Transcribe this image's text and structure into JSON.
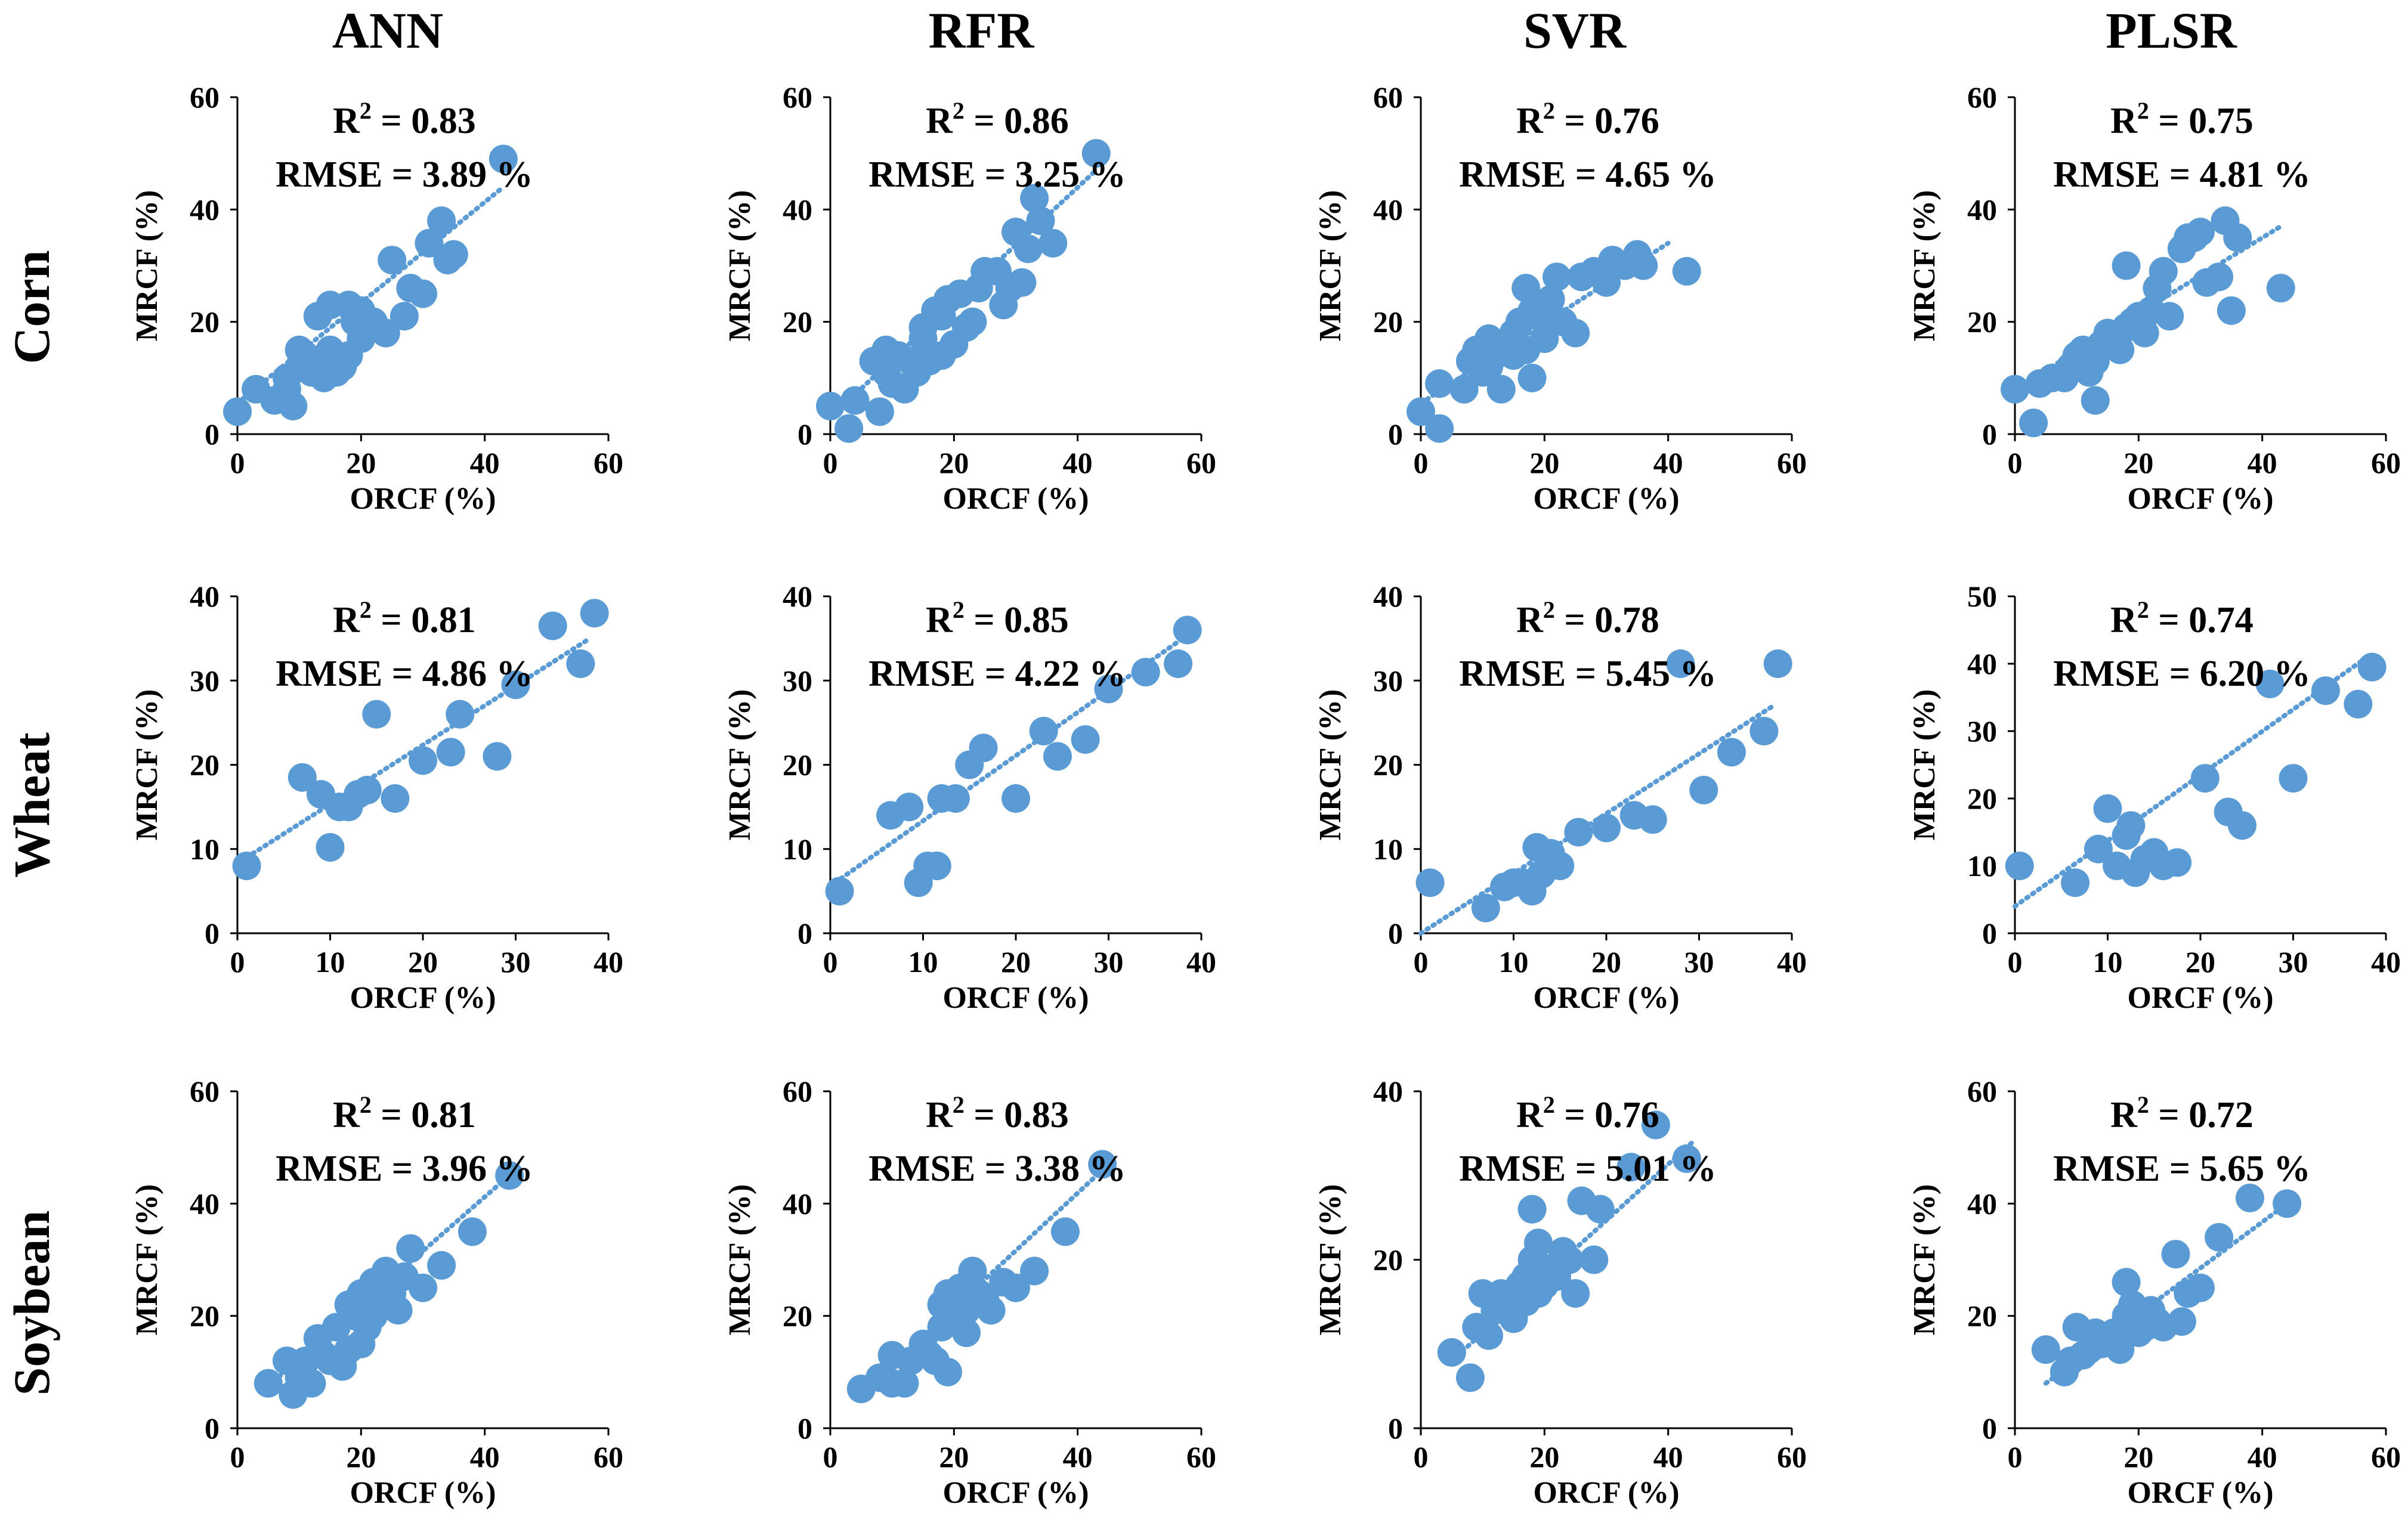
{
  "figure": {
    "column_titles": [
      "ANN",
      "RFR",
      "SVR",
      "PLSR"
    ],
    "row_titles": [
      "Corn",
      "Wheat",
      "Soybean"
    ],
    "x_label": "ORCF (%)",
    "y_label": "MRCF (%)",
    "marker_color": "#5B9BD5",
    "trend_color": "#5B9BD5"
  },
  "chart_data": [
    {
      "type": "scatter",
      "crop": "Corn",
      "model": "ANN",
      "title": "Corn – ANN",
      "xlabel": "ORCF (%)",
      "ylabel": "MRCF (%)",
      "xlim": [
        0,
        60
      ],
      "ylim": [
        0,
        60
      ],
      "xticks": [
        0,
        20,
        40,
        60
      ],
      "yticks": [
        0,
        20,
        40,
        60
      ],
      "r2_text": "R",
      "r2_value": " = 0.83",
      "rmse_text": "RMSE = 3.89 %",
      "trend": [
        [
          0,
          5.5
        ],
        [
          43,
          44
        ]
      ],
      "x": [
        0,
        3,
        6,
        8,
        8,
        9,
        10,
        10,
        11,
        12,
        13,
        13,
        14,
        15,
        15,
        16,
        17,
        18,
        18,
        19,
        20,
        20,
        21,
        22,
        24,
        25,
        27,
        28,
        30,
        31,
        33,
        34,
        35,
        43
      ],
      "y": [
        4,
        8,
        6,
        8,
        10,
        5,
        12,
        15,
        14,
        11,
        13,
        21,
        10,
        15,
        23,
        11,
        12,
        14,
        23,
        20,
        17,
        22,
        19,
        20,
        18,
        31,
        21,
        26,
        25,
        34,
        38,
        31,
        32,
        49
      ]
    },
    {
      "type": "scatter",
      "crop": "Corn",
      "model": "RFR",
      "title": "Corn – RFR",
      "xlabel": "ORCF (%)",
      "ylabel": "MRCF (%)",
      "xlim": [
        0,
        60
      ],
      "ylim": [
        0,
        60
      ],
      "xticks": [
        0,
        20,
        40,
        60
      ],
      "yticks": [
        0,
        20,
        40,
        60
      ],
      "r2_text": "R",
      "r2_value": " = 0.86",
      "rmse_text": "RMSE = 3.25 %",
      "trend": [
        [
          0,
          3
        ],
        [
          43,
          47
        ]
      ],
      "x": [
        0,
        3,
        4,
        7,
        8,
        9,
        9,
        10,
        11,
        12,
        13,
        14,
        15,
        15,
        16,
        17,
        18,
        18,
        19,
        20,
        21,
        22,
        23,
        24,
        25,
        27,
        28,
        29,
        30,
        31,
        32,
        33,
        34,
        36,
        43
      ],
      "y": [
        5,
        1,
        6,
        13,
        4,
        11,
        15,
        9,
        14,
        8,
        13,
        11,
        17,
        19,
        13,
        22,
        14,
        21,
        24,
        16,
        25,
        19,
        20,
        26,
        29,
        29,
        23,
        26,
        36,
        27,
        33,
        42,
        38,
        34,
        50
      ]
    },
    {
      "type": "scatter",
      "crop": "Corn",
      "model": "SVR",
      "title": "Corn – SVR",
      "xlabel": "ORCF (%)",
      "ylabel": "MRCF (%)",
      "xlim": [
        0,
        60
      ],
      "ylim": [
        0,
        60
      ],
      "xticks": [
        0,
        20,
        40,
        60
      ],
      "yticks": [
        0,
        20,
        40,
        60
      ],
      "r2_text": "R",
      "r2_value": " = 0.76",
      "rmse_text": "RMSE = 4.65 %",
      "trend": [
        [
          0,
          5.5
        ],
        [
          40,
          34
        ]
      ],
      "x": [
        0,
        3,
        3,
        7,
        8,
        9,
        10,
        11,
        11,
        12,
        13,
        14,
        15,
        15,
        16,
        17,
        17,
        18,
        18,
        19,
        20,
        21,
        22,
        23,
        25,
        26,
        28,
        30,
        31,
        33,
        35,
        36,
        43
      ],
      "y": [
        4,
        1,
        9,
        8,
        13,
        15,
        11,
        17,
        12,
        14,
        8,
        16,
        18,
        14,
        20,
        26,
        15,
        10,
        22,
        21,
        17,
        24,
        28,
        20,
        18,
        28,
        29,
        27,
        31,
        30,
        32,
        30,
        29
      ]
    },
    {
      "type": "scatter",
      "crop": "Corn",
      "model": "PLSR",
      "title": "Corn – PLSR",
      "xlabel": "ORCF (%)",
      "ylabel": "MRCF (%)",
      "xlim": [
        0,
        60
      ],
      "ylim": [
        0,
        60
      ],
      "xticks": [
        0,
        20,
        40,
        60
      ],
      "yticks": [
        0,
        20,
        40,
        60
      ],
      "r2_text": "R",
      "r2_value": " = 0.75",
      "rmse_text": "RMSE = 4.81 %",
      "trend": [
        [
          0,
          8
        ],
        [
          43,
          37
        ]
      ],
      "x": [
        0,
        3,
        4,
        6,
        8,
        9,
        10,
        11,
        12,
        13,
        13,
        14,
        15,
        16,
        17,
        18,
        18,
        19,
        20,
        21,
        22,
        23,
        24,
        25,
        27,
        28,
        29,
        30,
        31,
        33,
        34,
        35,
        36,
        43
      ],
      "y": [
        8,
        2,
        9,
        10,
        10,
        12,
        14,
        15,
        11,
        6,
        13,
        16,
        18,
        17,
        15,
        30,
        19,
        20,
        21,
        18,
        22,
        26,
        29,
        21,
        33,
        35,
        35,
        36,
        27,
        28,
        38,
        22,
        35,
        26
      ]
    },
    {
      "type": "scatter",
      "crop": "Wheat",
      "model": "ANN",
      "title": "Wheat – ANN",
      "xlabel": "ORCF (%)",
      "ylabel": "MRCF (%)",
      "xlim": [
        0,
        40
      ],
      "ylim": [
        0,
        40
      ],
      "xticks": [
        0,
        10,
        20,
        30,
        40
      ],
      "yticks": [
        0,
        10,
        20,
        30,
        40
      ],
      "r2_text": "R",
      "r2_value": " = 0.81",
      "rmse_text": "RMSE = 4.86 %",
      "trend": [
        [
          1,
          9
        ],
        [
          38,
          35
        ]
      ],
      "x": [
        1,
        7,
        9,
        10,
        11,
        12,
        13,
        14,
        15,
        17,
        20,
        23,
        24,
        28,
        30,
        34,
        37,
        38.5
      ],
      "y": [
        8,
        18.5,
        16.5,
        10.2,
        15,
        15,
        16.5,
        17,
        26,
        16,
        20.5,
        21.5,
        26,
        21,
        29.5,
        36.5,
        32,
        38
      ]
    },
    {
      "type": "scatter",
      "crop": "Wheat",
      "model": "RFR",
      "title": "Wheat – RFR",
      "xlabel": "ORCF (%)",
      "ylabel": "MRCF (%)",
      "xlim": [
        0,
        40
      ],
      "ylim": [
        0,
        40
      ],
      "xticks": [
        0,
        10,
        20,
        30,
        40
      ],
      "yticks": [
        0,
        10,
        20,
        30,
        40
      ],
      "r2_text": "R",
      "r2_value": " = 0.85",
      "rmse_text": "RMSE = 4.22 %",
      "trend": [
        [
          0.5,
          6
        ],
        [
          38,
          35
        ]
      ],
      "x": [
        1,
        6.5,
        8.5,
        9.5,
        10.5,
        11.5,
        12,
        13.5,
        15,
        16.5,
        20,
        23,
        24.5,
        27.5,
        30,
        34,
        37.5,
        38.5
      ],
      "y": [
        5,
        14,
        15,
        6,
        8,
        8,
        16,
        16,
        20,
        22,
        16,
        24,
        21,
        23,
        29,
        31,
        32,
        36
      ]
    },
    {
      "type": "scatter",
      "crop": "Wheat",
      "model": "SVR",
      "title": "Wheat – SVR",
      "xlabel": "ORCF (%)",
      "ylabel": "MRCF (%)",
      "xlim": [
        0,
        40
      ],
      "ylim": [
        0,
        40
      ],
      "xticks": [
        0,
        10,
        20,
        30,
        40
      ],
      "yticks": [
        0,
        10,
        20,
        30,
        40
      ],
      "r2_text": "R",
      "r2_value": " = 0.78",
      "rmse_text": "RMSE = 5.45 %",
      "trend": [
        [
          0,
          0
        ],
        [
          38,
          27
        ]
      ],
      "x": [
        1,
        7,
        9,
        10,
        11,
        12,
        12.5,
        13,
        14,
        15,
        17,
        20,
        23,
        25,
        28,
        30.5,
        33.5,
        37,
        38.5
      ],
      "y": [
        6,
        3,
        5.5,
        6,
        6,
        5,
        10.2,
        7,
        9.5,
        8,
        12,
        12.5,
        14,
        13.5,
        32,
        17,
        21.5,
        24,
        32
      ]
    },
    {
      "type": "scatter",
      "crop": "Wheat",
      "model": "PLSR",
      "title": "Wheat – PLSR",
      "xlabel": "ORCF (%)",
      "ylabel": "MRCF (%)",
      "xlim": [
        0,
        40
      ],
      "ylim": [
        0,
        50
      ],
      "xticks": [
        0,
        10,
        20,
        30,
        40
      ],
      "yticks": [
        0,
        10,
        20,
        30,
        40,
        50
      ],
      "r2_text": "R",
      "r2_value": " = 0.74",
      "rmse_text": "RMSE = 6.20 %",
      "trend": [
        [
          0,
          4
        ],
        [
          38,
          41
        ]
      ],
      "x": [
        0.5,
        6.5,
        9,
        10,
        11,
        12,
        12.5,
        13,
        14,
        15,
        16,
        17.5,
        20.5,
        23,
        24.5,
        27.5,
        30,
        33.5,
        37,
        38.5
      ],
      "y": [
        10,
        7.5,
        12.5,
        18.5,
        10,
        14.5,
        16,
        9,
        11,
        12,
        10,
        10.5,
        23,
        18,
        16,
        37,
        23,
        36,
        34,
        39.5
      ]
    },
    {
      "type": "scatter",
      "crop": "Soybean",
      "model": "ANN",
      "title": "Soybean – ANN",
      "xlabel": "ORCF (%)",
      "ylabel": "MRCF (%)",
      "xlim": [
        0,
        60
      ],
      "ylim": [
        0,
        60
      ],
      "xticks": [
        0,
        20,
        40,
        60
      ],
      "yticks": [
        0,
        20,
        40,
        60
      ],
      "r2_text": "R",
      "r2_value": " = 0.81",
      "rmse_text": "RMSE = 3.96 %",
      "trend": [
        [
          5,
          7.5
        ],
        [
          45,
          46
        ]
      ],
      "x": [
        5,
        8,
        9,
        10,
        11,
        12,
        13,
        14,
        15,
        16,
        17,
        18,
        18,
        19,
        20,
        20,
        21,
        22,
        22,
        23,
        24,
        25,
        26,
        27,
        28,
        30,
        33,
        38,
        44
      ],
      "y": [
        8,
        12,
        6,
        9,
        12,
        8,
        16,
        13,
        12,
        18,
        11,
        22,
        14,
        20,
        15,
        24,
        18,
        20,
        26,
        22,
        28,
        24,
        21,
        27,
        32,
        25,
        29,
        35,
        45
      ]
    },
    {
      "type": "scatter",
      "crop": "Soybean",
      "model": "RFR",
      "title": "Soybean – RFR",
      "xlabel": "ORCF (%)",
      "ylabel": "MRCF (%)",
      "xlim": [
        0,
        60
      ],
      "ylim": [
        0,
        60
      ],
      "xticks": [
        0,
        20,
        40,
        60
      ],
      "yticks": [
        0,
        20,
        40,
        60
      ],
      "r2_text": "R",
      "r2_value": " = 0.83",
      "rmse_text": "RMSE = 3.38 %",
      "trend": [
        [
          5,
          6
        ],
        [
          45,
          47
        ]
      ],
      "x": [
        5,
        8,
        10,
        10,
        12,
        13,
        15,
        16,
        17,
        18,
        18,
        19,
        19,
        20,
        21,
        22,
        22,
        23,
        24,
        25,
        26,
        28,
        30,
        33,
        38,
        44
      ],
      "y": [
        7,
        9,
        8,
        13,
        8,
        12,
        15,
        13,
        12,
        22,
        18,
        10,
        24,
        20,
        25,
        17,
        21,
        28,
        24,
        23,
        21,
        26,
        25,
        28,
        35,
        47
      ]
    },
    {
      "type": "scatter",
      "crop": "Soybean",
      "model": "SVR",
      "title": "Soybean – SVR",
      "xlabel": "ORCF (%)",
      "ylabel": "MRCF (%)",
      "xlim": [
        0,
        60
      ],
      "ylim": [
        0,
        40
      ],
      "xticks": [
        0,
        20,
        40,
        60
      ],
      "yticks": [
        0,
        20,
        40
      ],
      "r2_text": "R",
      "r2_value": " = 0.76",
      "rmse_text": "RMSE = 5.01 %",
      "trend": [
        [
          5,
          8
        ],
        [
          44,
          34
        ]
      ],
      "x": [
        5,
        8,
        9,
        10,
        11,
        12,
        13,
        14,
        15,
        16,
        17,
        17,
        18,
        18,
        19,
        19,
        20,
        21,
        22,
        23,
        24,
        25,
        26,
        28,
        29,
        34,
        38,
        43
      ],
      "y": [
        9,
        6,
        12,
        16,
        11,
        14,
        16,
        15,
        13,
        17,
        18,
        15,
        26,
        20,
        16,
        22,
        17,
        19,
        18,
        21,
        20,
        16,
        27,
        20,
        26,
        31,
        36,
        32
      ]
    },
    {
      "type": "scatter",
      "crop": "Soybean",
      "model": "PLSR",
      "title": "Soybean – PLSR",
      "xlabel": "ORCF (%)",
      "ylabel": "MRCF (%)",
      "xlim": [
        0,
        60
      ],
      "ylim": [
        0,
        60
      ],
      "xticks": [
        0,
        20,
        40,
        60
      ],
      "yticks": [
        0,
        20,
        40,
        60
      ],
      "r2_text": "R",
      "r2_value": " = 0.72",
      "rmse_text": "RMSE = 5.65 %",
      "trend": [
        [
          5,
          8
        ],
        [
          44,
          40
        ]
      ],
      "x": [
        5,
        8,
        9,
        10,
        11,
        12,
        13,
        14,
        15,
        16,
        17,
        18,
        18,
        19,
        20,
        21,
        22,
        23,
        24,
        26,
        27,
        28,
        30,
        33,
        38,
        44
      ],
      "y": [
        14,
        10,
        12,
        18,
        13,
        14,
        17,
        15,
        16,
        17,
        14,
        26,
        20,
        22,
        17,
        18,
        21,
        19,
        18,
        31,
        19,
        24,
        25,
        34,
        41,
        40
      ]
    }
  ]
}
